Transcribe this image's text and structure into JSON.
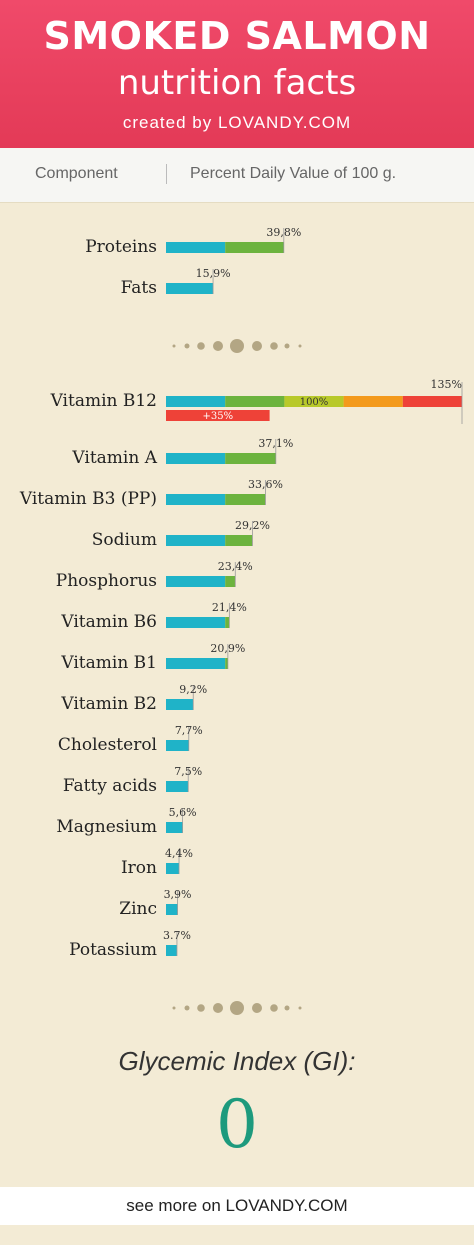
{
  "header": {
    "title": "SMOKED SALMON",
    "subtitle": "nutrition facts",
    "credit": "created by LOVANDY.COM"
  },
  "columns": {
    "component": "Component",
    "value": "Percent Daily Value of 100 g."
  },
  "colors": {
    "blue": "#1fb3c8",
    "green": "#6cb33e",
    "lime": "#b8c92a",
    "orange": "#f39a1c",
    "red": "#ee4238",
    "dot": "#b3a684"
  },
  "chart_data": {
    "type": "bar",
    "orientation": "horizontal",
    "groups": [
      {
        "categories": [
          "Proteins",
          "Fats"
        ],
        "values": [
          39.8,
          15.9
        ],
        "labels": [
          "39,8%",
          "15,9%"
        ]
      },
      {
        "categories": [
          "Vitamin B12",
          "Vitamin A",
          "Vitamin B3 (PP)",
          "Sodium",
          "Phosphorus",
          "Vitamin B6",
          "Vitamin B1",
          "Vitamin B2",
          "Cholesterol",
          "Fatty acids",
          "Magnesium",
          "Iron",
          "Zinc",
          "Potassium"
        ],
        "values": [
          135,
          37.1,
          33.6,
          29.2,
          23.4,
          21.4,
          20.9,
          9.2,
          7.7,
          7.5,
          5.6,
          4.4,
          3.9,
          3.7
        ],
        "labels": [
          "135%",
          "37,1%",
          "33,6%",
          "29,2%",
          "23,4%",
          "21,4%",
          "20,9%",
          "9,2%",
          "7,7%",
          "7,5%",
          "5,6%",
          "4,4%",
          "3,9%",
          "3.7%"
        ]
      }
    ],
    "overflow_annotations": {
      "hundred_label": "100%",
      "excess_label": "+35%"
    },
    "xlim": [
      0,
      135
    ]
  },
  "glycemic": {
    "label": "Glycemic Index (GI):",
    "value": "0"
  },
  "footer": {
    "text": "see more on LOVANDY.COM"
  }
}
